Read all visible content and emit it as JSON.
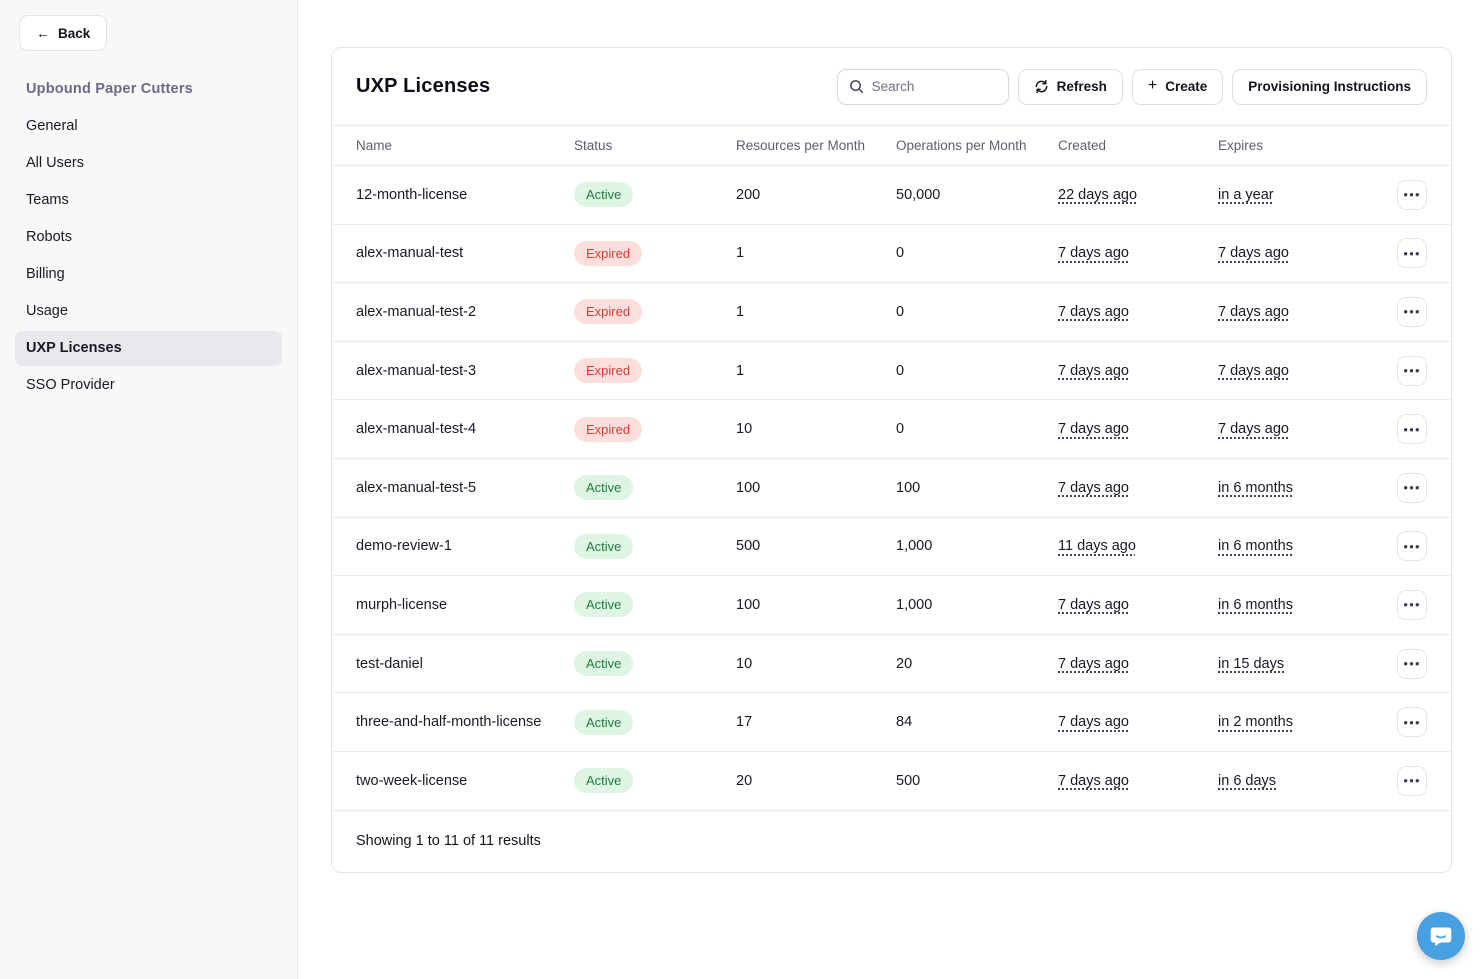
{
  "sidebar": {
    "back_label": "Back",
    "org_name": "Upbound Paper Cutters",
    "items": [
      {
        "label": "General",
        "active": false
      },
      {
        "label": "All Users",
        "active": false
      },
      {
        "label": "Teams",
        "active": false
      },
      {
        "label": "Robots",
        "active": false
      },
      {
        "label": "Billing",
        "active": false
      },
      {
        "label": "Usage",
        "active": false
      },
      {
        "label": "UXP Licenses",
        "active": true
      },
      {
        "label": "SSO Provider",
        "active": false
      }
    ]
  },
  "header": {
    "title": "UXP Licenses",
    "search_placeholder": "Search",
    "refresh_label": "Refresh",
    "create_label": "Create",
    "provisioning_label": "Provisioning Instructions"
  },
  "table": {
    "columns": [
      "Name",
      "Status",
      "Resources per Month",
      "Operations per Month",
      "Created",
      "Expires"
    ],
    "rows": [
      {
        "name": "12-month-license",
        "status": "Active",
        "resources": "200",
        "operations": "50,000",
        "created": "22 days ago",
        "expires": "in a year"
      },
      {
        "name": "alex-manual-test",
        "status": "Expired",
        "resources": "1",
        "operations": "0",
        "created": "7 days ago",
        "expires": "7 days ago"
      },
      {
        "name": "alex-manual-test-2",
        "status": "Expired",
        "resources": "1",
        "operations": "0",
        "created": "7 days ago",
        "expires": "7 days ago"
      },
      {
        "name": "alex-manual-test-3",
        "status": "Expired",
        "resources": "1",
        "operations": "0",
        "created": "7 days ago",
        "expires": "7 days ago"
      },
      {
        "name": "alex-manual-test-4",
        "status": "Expired",
        "resources": "10",
        "operations": "0",
        "created": "7 days ago",
        "expires": "7 days ago"
      },
      {
        "name": "alex-manual-test-5",
        "status": "Active",
        "resources": "100",
        "operations": "100",
        "created": "7 days ago",
        "expires": "in 6 months"
      },
      {
        "name": "demo-review-1",
        "status": "Active",
        "resources": "500",
        "operations": "1,000",
        "created": "11 days ago",
        "expires": "in 6 months"
      },
      {
        "name": "murph-license",
        "status": "Active",
        "resources": "100",
        "operations": "1,000",
        "created": "7 days ago",
        "expires": "in 6 months"
      },
      {
        "name": "test-daniel",
        "status": "Active",
        "resources": "10",
        "operations": "20",
        "created": "7 days ago",
        "expires": "in 15 days"
      },
      {
        "name": "three-and-half-month-license",
        "status": "Active",
        "resources": "17",
        "operations": "84",
        "created": "7 days ago",
        "expires": "in 2 months"
      },
      {
        "name": "two-week-license",
        "status": "Active",
        "resources": "20",
        "operations": "500",
        "created": "7 days ago",
        "expires": "in 6 days"
      }
    ]
  },
  "footer": {
    "summary": "Showing 1 to 11 of 11 results"
  },
  "icons": {
    "back_arrow": "←",
    "plus": "+",
    "ellipsis": "●●●",
    "search": "magnifier-icon",
    "refresh": "circular-arrows-icon",
    "chat": "speech-bubble-smile-icon"
  },
  "colors": {
    "active_bg": "#def5e4",
    "active_text": "#1e7e3e",
    "expired_bg": "#fcdfdd",
    "expired_text": "#d43c33",
    "accent_chat": "#47a0e2",
    "sidebar_bg": "#f8f8f9",
    "selected_item_bg": "#e9e9ed",
    "org_title_text": "#6b6b87"
  }
}
